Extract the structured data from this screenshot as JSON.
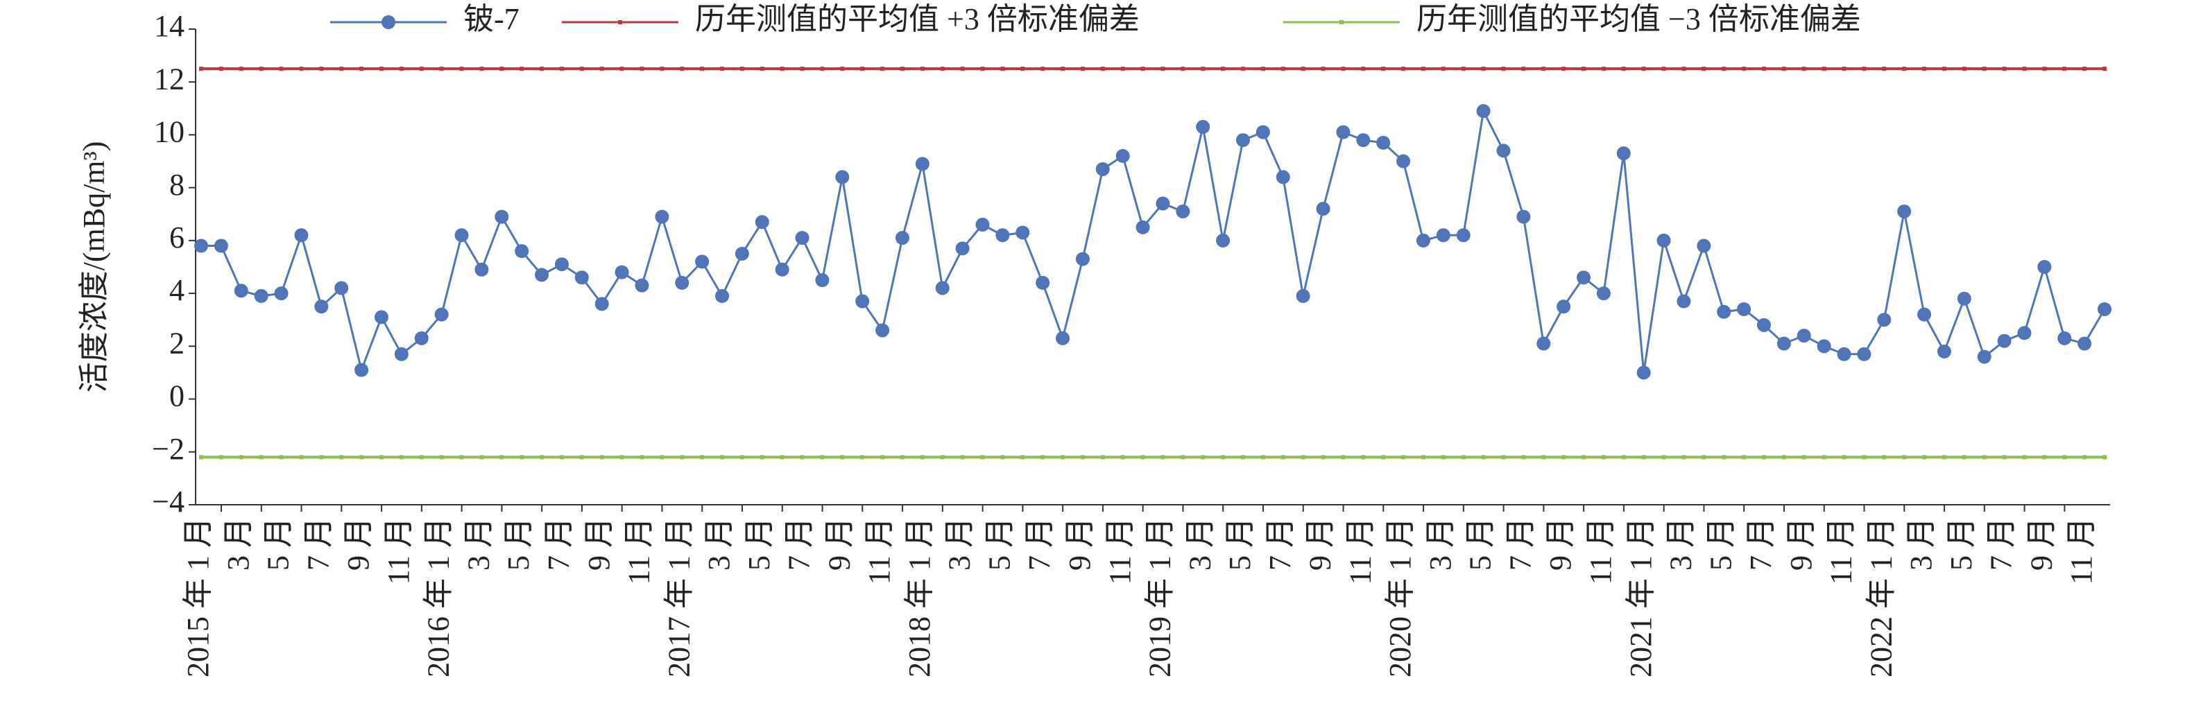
{
  "chart_data": {
    "type": "line",
    "ylabel": "活度浓度/(mBq/m³)",
    "categories": [
      "2015 年 1 月",
      null,
      "3 月",
      null,
      "5 月",
      null,
      "7 月",
      null,
      "9 月",
      null,
      "11 月",
      null,
      "2016 年 1 月",
      null,
      "3 月",
      null,
      "5 月",
      null,
      "7 月",
      null,
      "9 月",
      null,
      "11 月",
      null,
      "2017 年 1 月",
      null,
      "3 月",
      null,
      "5 月",
      null,
      "7 月",
      null,
      "9 月",
      null,
      "11 月",
      null,
      "2018 年 1 月",
      null,
      "3 月",
      null,
      "5 月",
      null,
      "7 月",
      null,
      "9 月",
      null,
      "11 月",
      null,
      "2019 年 1 月",
      null,
      "3 月",
      null,
      "5 月",
      null,
      "7 月",
      null,
      "9 月",
      null,
      "11 月",
      null,
      "2020 年 1 月",
      null,
      "3 月",
      null,
      "5 月",
      null,
      "7 月",
      null,
      "9 月",
      null,
      "11 月",
      null,
      "2021 年 1 月",
      null,
      "3 月",
      null,
      "5 月",
      null,
      "7 月",
      null,
      "9 月",
      null,
      "11 月",
      null,
      "2022 年 1 月",
      null,
      "3 月",
      null,
      "5 月",
      null,
      "7 月",
      null,
      "9 月",
      null,
      "11 月",
      null
    ],
    "series": [
      {
        "name": "铍-7",
        "color": "#4f75b8",
        "marker": "circle",
        "values": [
          5.8,
          5.8,
          4.1,
          3.9,
          4.0,
          6.2,
          3.5,
          4.2,
          1.1,
          3.1,
          1.7,
          2.3,
          3.2,
          6.2,
          4.9,
          6.9,
          5.6,
          4.7,
          5.1,
          4.6,
          3.6,
          4.8,
          4.3,
          6.9,
          4.4,
          5.2,
          3.9,
          5.5,
          6.7,
          4.9,
          6.1,
          4.5,
          8.4,
          3.7,
          2.6,
          6.1,
          8.9,
          4.2,
          5.7,
          6.6,
          6.2,
          6.3,
          4.4,
          2.3,
          5.3,
          8.7,
          9.2,
          6.5,
          7.4,
          7.1,
          10.3,
          6.0,
          9.8,
          10.1,
          8.4,
          3.9,
          7.2,
          10.1,
          9.8,
          9.7,
          9.0,
          6.0,
          6.2,
          6.2,
          10.9,
          9.4,
          6.9,
          2.1,
          3.5,
          4.6,
          4.0,
          9.3,
          1.0,
          6.0,
          3.7,
          5.8,
          3.3,
          3.4,
          2.8,
          2.1,
          2.4,
          2.0,
          1.7,
          1.7,
          3.0,
          7.1,
          3.2,
          1.8,
          3.8,
          1.6,
          2.2,
          2.5,
          5.0,
          2.3,
          2.1,
          3.4
        ]
      },
      {
        "name": "历年测值的平均值 +3 倍标准偏差",
        "color": "#b8393f",
        "marker": "square",
        "values": [
          12.5,
          12.5,
          12.5,
          12.5,
          12.5,
          12.5,
          12.5,
          12.5,
          12.5,
          12.5,
          12.5,
          12.5,
          12.5,
          12.5,
          12.5,
          12.5,
          12.5,
          12.5,
          12.5,
          12.5,
          12.5,
          12.5,
          12.5,
          12.5,
          12.5,
          12.5,
          12.5,
          12.5,
          12.5,
          12.5,
          12.5,
          12.5,
          12.5,
          12.5,
          12.5,
          12.5,
          12.5,
          12.5,
          12.5,
          12.5,
          12.5,
          12.5,
          12.5,
          12.5,
          12.5,
          12.5,
          12.5,
          12.5,
          12.5,
          12.5,
          12.5,
          12.5,
          12.5,
          12.5,
          12.5,
          12.5,
          12.5,
          12.5,
          12.5,
          12.5,
          12.5,
          12.5,
          12.5,
          12.5,
          12.5,
          12.5,
          12.5,
          12.5,
          12.5,
          12.5,
          12.5,
          12.5,
          12.5,
          12.5,
          12.5,
          12.5,
          12.5,
          12.5,
          12.5,
          12.5,
          12.5,
          12.5,
          12.5,
          12.5,
          12.5,
          12.5,
          12.5,
          12.5,
          12.5,
          12.5,
          12.5,
          12.5,
          12.5,
          12.5,
          12.5,
          12.5
        ]
      },
      {
        "name": "历年测值的平均值 −3 倍标准偏差",
        "color": "#8cbf4e",
        "marker": "square",
        "values": [
          -2.2,
          -2.2,
          -2.2,
          -2.2,
          -2.2,
          -2.2,
          -2.2,
          -2.2,
          -2.2,
          -2.2,
          -2.2,
          -2.2,
          -2.2,
          -2.2,
          -2.2,
          -2.2,
          -2.2,
          -2.2,
          -2.2,
          -2.2,
          -2.2,
          -2.2,
          -2.2,
          -2.2,
          -2.2,
          -2.2,
          -2.2,
          -2.2,
          -2.2,
          -2.2,
          -2.2,
          -2.2,
          -2.2,
          -2.2,
          -2.2,
          -2.2,
          -2.2,
          -2.2,
          -2.2,
          -2.2,
          -2.2,
          -2.2,
          -2.2,
          -2.2,
          -2.2,
          -2.2,
          -2.2,
          -2.2,
          -2.2,
          -2.2,
          -2.2,
          -2.2,
          -2.2,
          -2.2,
          -2.2,
          -2.2,
          -2.2,
          -2.2,
          -2.2,
          -2.2,
          -2.2,
          -2.2,
          -2.2,
          -2.2,
          -2.2,
          -2.2,
          -2.2,
          -2.2,
          -2.2,
          -2.2,
          -2.2,
          -2.2,
          -2.2,
          -2.2,
          -2.2,
          -2.2,
          -2.2,
          -2.2,
          -2.2,
          -2.2,
          -2.2,
          -2.2,
          -2.2,
          -2.2,
          -2.2,
          -2.2,
          -2.2,
          -2.2,
          -2.2,
          -2.2,
          -2.2,
          -2.2,
          -2.2,
          -2.2,
          -2.2,
          -2.2
        ]
      }
    ],
    "ylim": [
      -4,
      14
    ],
    "yticks": [
      {
        "value": -4,
        "label": "−4"
      },
      {
        "value": -2,
        "label": "−2"
      },
      0,
      2,
      4,
      6,
      8,
      10,
      12,
      14
    ],
    "legend": "top",
    "grid": false
  }
}
